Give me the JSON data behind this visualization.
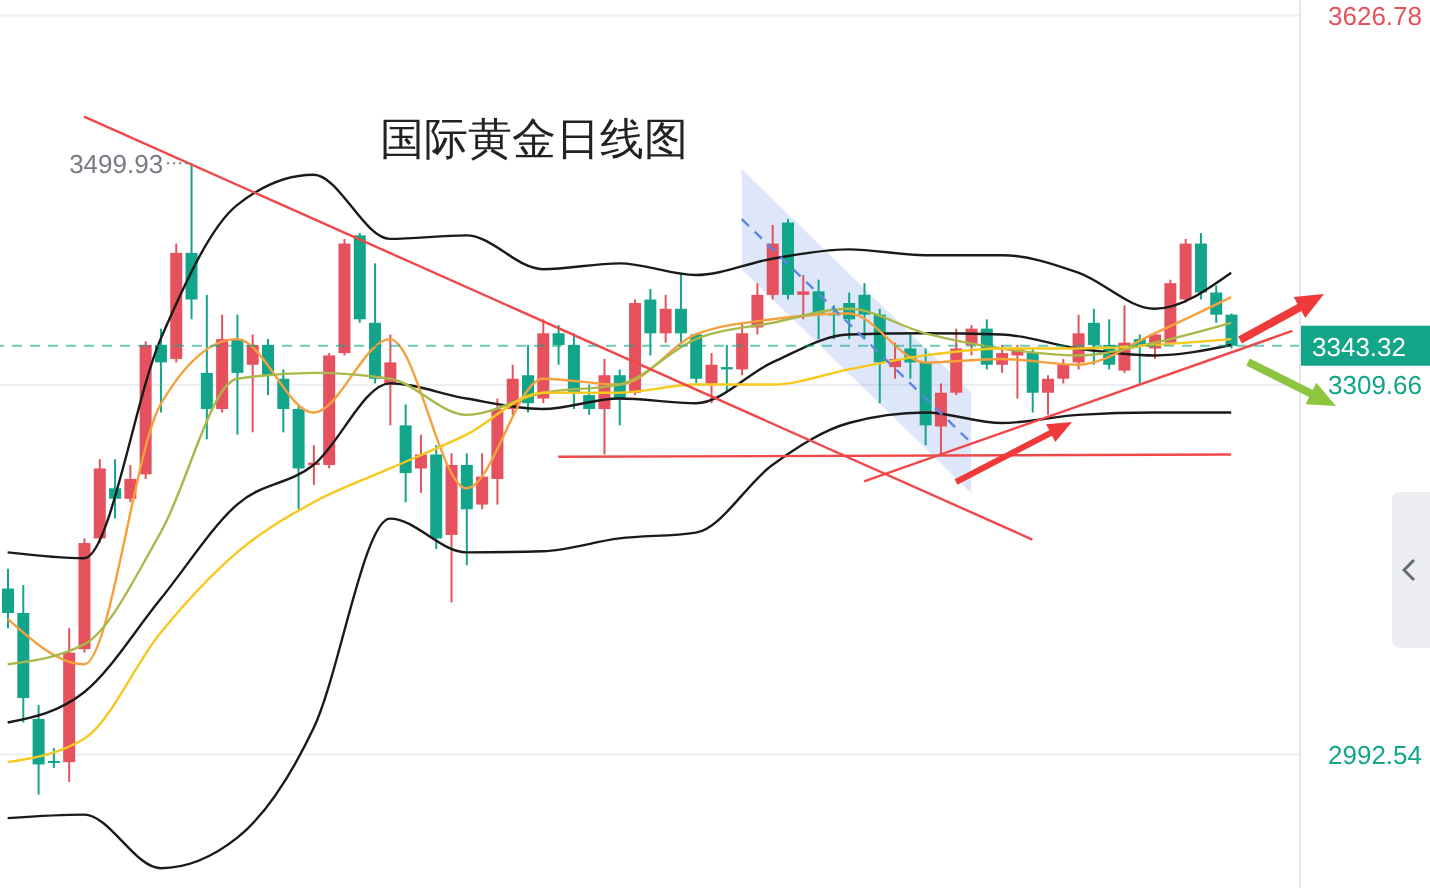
{
  "chart_data": {
    "type": "candlestick",
    "title": "国际黄金日线图",
    "categories": [
      null,
      null,
      null,
      null,
      null,
      null,
      null,
      null,
      null,
      null,
      null,
      null,
      null,
      null,
      null,
      null,
      null,
      null,
      null,
      null,
      null,
      null,
      null,
      null,
      null,
      null,
      null,
      null,
      null,
      null,
      null,
      null,
      null,
      null,
      null,
      null,
      null,
      null,
      null,
      null,
      null,
      null,
      null,
      null,
      null,
      null,
      null,
      null,
      null,
      null,
      null,
      null,
      null,
      null,
      null,
      null,
      null,
      null,
      null,
      null,
      null,
      null,
      null,
      null,
      null,
      null,
      null,
      null,
      null,
      null,
      null,
      null,
      null,
      null,
      null,
      null,
      null,
      null,
      null,
      null,
      null,
      null,
      null,
      null,
      null
    ],
    "ohlc": [
      [
        3135,
        3152,
        3101,
        3114
      ],
      [
        3114,
        3138,
        3020,
        3041
      ],
      [
        3023,
        3035,
        2958,
        2984
      ],
      [
        2987,
        2998,
        2981,
        2986
      ],
      [
        2986,
        3101,
        2969,
        3080
      ],
      [
        3083,
        3178,
        3080,
        3174
      ],
      [
        3178,
        3246,
        3174,
        3238
      ],
      [
        3221,
        3246,
        3195,
        3212
      ],
      [
        3212,
        3241,
        3209,
        3229
      ],
      [
        3233,
        3347,
        3229,
        3344
      ],
      [
        3344,
        3358,
        3286,
        3329
      ],
      [
        3332,
        3431,
        3329,
        3423
      ],
      [
        3423,
        3499.93,
        3366,
        3383
      ],
      [
        3320,
        3387,
        3263,
        3289
      ],
      [
        3289,
        3370,
        3286,
        3349
      ],
      [
        3349,
        3370,
        3267,
        3320
      ],
      [
        3327,
        3353,
        3269,
        3344
      ],
      [
        3344,
        3349,
        3301,
        3318
      ],
      [
        3315,
        3323,
        3269,
        3289
      ],
      [
        3289,
        3293,
        3203,
        3238
      ],
      [
        3241,
        3258,
        3224,
        3243
      ],
      [
        3241,
        3337,
        3238,
        3335
      ],
      [
        3337,
        3435,
        3335,
        3431
      ],
      [
        3438,
        3440,
        3363,
        3366
      ],
      [
        3363,
        3414,
        3311,
        3315
      ],
      [
        3310,
        3353,
        3275,
        3329
      ],
      [
        3275,
        3293,
        3209,
        3234
      ],
      [
        3238,
        3267,
        3217,
        3250
      ],
      [
        3250,
        3258,
        3169,
        3178
      ],
      [
        3181,
        3251,
        3123,
        3241
      ],
      [
        3241,
        3251,
        3155,
        3203
      ],
      [
        3207,
        3251,
        3203,
        3231
      ],
      [
        3229,
        3298,
        3207,
        3289
      ],
      [
        3289,
        3327,
        3284,
        3315
      ],
      [
        3318,
        3344,
        3286,
        3294
      ],
      [
        3298,
        3366,
        3294,
        3354
      ],
      [
        3354,
        3361,
        3327,
        3344
      ],
      [
        3344,
        3354,
        3289,
        3303
      ],
      [
        3301,
        3310,
        3284,
        3289
      ],
      [
        3289,
        3332,
        3250,
        3318
      ],
      [
        3318,
        3323,
        3275,
        3298
      ],
      [
        3303,
        3383,
        3301,
        3380
      ],
      [
        3383,
        3392,
        3335,
        3354
      ],
      [
        3354,
        3387,
        3346,
        3375
      ],
      [
        3375,
        3404,
        3346,
        3354
      ],
      [
        3353,
        3354,
        3311,
        3315
      ],
      [
        3311,
        3337,
        3294,
        3327
      ],
      [
        3325,
        3344,
        3303,
        3323
      ],
      [
        3323,
        3363,
        3318,
        3354
      ],
      [
        3359,
        3397,
        3353,
        3387
      ],
      [
        3387,
        3447,
        3383,
        3431
      ],
      [
        3449,
        3452,
        3383,
        3387
      ],
      [
        3387,
        3404,
        3366,
        3390
      ],
      [
        3390,
        3400,
        3349,
        3370
      ],
      [
        3371,
        3378,
        3349,
        3370
      ],
      [
        3380,
        3389,
        3349,
        3366
      ],
      [
        3387,
        3397,
        3349,
        3370
      ],
      [
        3370,
        3375,
        3294,
        3329
      ],
      [
        3325,
        3346,
        3315,
        3332
      ],
      [
        3341,
        3353,
        3315,
        3329
      ],
      [
        3329,
        3341,
        3258,
        3275
      ],
      [
        3274,
        3311,
        3250,
        3303
      ],
      [
        3303,
        3358,
        3301,
        3341
      ],
      [
        3344,
        3361,
        3335,
        3358
      ],
      [
        3358,
        3366,
        3323,
        3327
      ],
      [
        3327,
        3344,
        3320,
        3337
      ],
      [
        3335,
        3344,
        3298,
        3341
      ],
      [
        3337,
        3341,
        3286,
        3303
      ],
      [
        3303,
        3318,
        3284,
        3315
      ],
      [
        3315,
        3332,
        3311,
        3327
      ],
      [
        3329,
        3370,
        3323,
        3354
      ],
      [
        3363,
        3375,
        3327,
        3344
      ],
      [
        3344,
        3366,
        3323,
        3327
      ],
      [
        3322,
        3378,
        3320,
        3346
      ],
      [
        3349,
        3353,
        3311,
        3344
      ],
      [
        3341,
        3354,
        3332,
        3353
      ],
      [
        3346,
        3400,
        3344,
        3397
      ],
      [
        3383,
        3435,
        3380,
        3431
      ],
      [
        3431,
        3440,
        3383,
        3389
      ],
      [
        3389,
        3395,
        3363,
        3370
      ],
      [
        3370,
        3371,
        3341,
        3343.32
      ],
      null,
      null,
      null,
      null
    ],
    "colors": [
      "#12a58a",
      "#12a58a",
      "#12a58a",
      "#12a58a",
      "#e5525e",
      "#e5525e",
      "#e5525e",
      "#12a58a",
      "#e5525e",
      "#e5525e",
      "#12a58a",
      "#e5525e",
      "#12a58a",
      "#12a58a",
      "#e5525e",
      "#12a58a",
      "#e5525e",
      "#12a58a",
      "#12a58a",
      "#12a58a",
      "#e5525e",
      "#e5525e",
      "#e5525e",
      "#12a58a",
      "#12a58a",
      "#e5525e",
      "#12a58a",
      "#e5525e",
      "#12a58a",
      "#e5525e",
      "#12a58a",
      "#e5525e",
      "#e5525e",
      "#e5525e",
      "#12a58a",
      "#e5525e",
      "#12a58a",
      "#12a58a",
      "#12a58a",
      "#e5525e",
      "#12a58a",
      "#e5525e",
      "#12a58a",
      "#e5525e",
      "#12a58a",
      "#12a58a",
      "#e5525e",
      "#12a58a",
      "#e5525e",
      "#e5525e",
      "#e5525e",
      "#12a58a",
      "#e5525e",
      "#12a58a",
      "#12a58a",
      "#12a58a",
      "#12a58a",
      "#12a58a",
      "#e5525e",
      "#12a58a",
      "#12a58a",
      "#e5525e",
      "#e5525e",
      "#e5525e",
      "#12a58a",
      "#e5525e",
      "#e5525e",
      "#12a58a",
      "#e5525e",
      "#e5525e",
      "#e5525e",
      "#12a58a",
      "#12a58a",
      "#e5525e",
      "#12a58a",
      "#e5525e",
      "#e5525e",
      "#e5525e",
      "#12a58a",
      "#12a58a",
      "#12a58a",
      null,
      null,
      null,
      null
    ],
    "series": [
      {
        "type": "line",
        "color": "#1a1a1a",
        "values": [
          3166,
          null,
          null,
          null,
          null,
          3161,
          null,
          null,
          null,
          null,
          3349,
          null,
          null,
          null,
          null,
          3464,
          null,
          null,
          null,
          null,
          3490,
          null,
          null,
          null,
          null,
          3435,
          null,
          null,
          null,
          null,
          3438,
          null,
          null,
          null,
          null,
          3409,
          null,
          null,
          null,
          null,
          3414,
          null,
          null,
          null,
          null,
          3404,
          null,
          null,
          null,
          null,
          3418,
          null,
          null,
          null,
          null,
          3426,
          null,
          null,
          null,
          null,
          3421,
          null,
          null,
          null,
          null,
          3421,
          null,
          null,
          null,
          null,
          3406,
          null,
          null,
          null,
          null,
          3375,
          null,
          null,
          null,
          null,
          3406,
          null,
          null,
          null,
          null
        ]
      },
      {
        "type": "line",
        "color": "#1a1a1a",
        "values": [
          3020,
          null,
          null,
          null,
          null,
          3046,
          null,
          null,
          null,
          null,
          3126,
          null,
          null,
          null,
          null,
          3207,
          null,
          null,
          null,
          null,
          3241,
          null,
          null,
          null,
          null,
          3311,
          null,
          null,
          null,
          null,
          3298,
          null,
          null,
          null,
          null,
          3289,
          null,
          null,
          null,
          null,
          3298,
          null,
          null,
          null,
          null,
          3294,
          null,
          null,
          null,
          null,
          3329,
          null,
          null,
          null,
          null,
          3353,
          null,
          null,
          null,
          null,
          3354,
          null,
          null,
          null,
          null,
          3353,
          null,
          null,
          null,
          null,
          3341,
          null,
          null,
          null,
          null,
          3335,
          null,
          null,
          null,
          null,
          3344,
          null,
          null,
          null,
          null
        ]
      },
      {
        "type": "line",
        "color": "#1a1a1a",
        "values": [
          2938,
          null,
          null,
          null,
          null,
          2941,
          null,
          null,
          null,
          null,
          2895,
          null,
          null,
          null,
          null,
          2921,
          null,
          null,
          null,
          null,
          3015,
          null,
          null,
          null,
          null,
          3195,
          null,
          null,
          null,
          null,
          3166,
          null,
          null,
          null,
          null,
          3167,
          null,
          null,
          null,
          null,
          3178,
          null,
          null,
          null,
          null,
          3183,
          null,
          null,
          null,
          null,
          3241,
          null,
          null,
          null,
          null,
          3277,
          null,
          null,
          null,
          null,
          3286,
          null,
          null,
          null,
          null,
          3277,
          null,
          null,
          null,
          null,
          3284,
          null,
          null,
          null,
          null,
          3286,
          null,
          null,
          null,
          null,
          3286,
          null,
          null,
          null,
          null
        ]
      },
      {
        "type": "line",
        "color": "#f5a03c",
        "values": [
          3109,
          null,
          null,
          null,
          null,
          3070,
          null,
          null,
          null,
          null,
          3293,
          null,
          null,
          null,
          null,
          3349,
          null,
          null,
          null,
          null,
          3286,
          null,
          null,
          null,
          null,
          3349,
          null,
          null,
          null,
          null,
          3221,
          null,
          null,
          null,
          null,
          3315,
          null,
          null,
          null,
          null,
          3310,
          null,
          null,
          null,
          null,
          3353,
          null,
          null,
          null,
          null,
          3366,
          null,
          null,
          null,
          null,
          3371,
          null,
          null,
          null,
          null,
          3329,
          null,
          null,
          null,
          null,
          3332,
          null,
          null,
          null,
          null,
          3327,
          null,
          null,
          null,
          null,
          3354,
          null,
          null,
          null,
          null,
          3385,
          null,
          null,
          null,
          null
        ]
      },
      {
        "type": "line",
        "color": "#a8b84a",
        "values": [
          3070,
          null,
          null,
          null,
          null,
          3087,
          null,
          null,
          null,
          null,
          3183,
          null,
          null,
          null,
          null,
          3315,
          null,
          null,
          null,
          null,
          3320,
          null,
          null,
          null,
          null,
          3315,
          null,
          null,
          null,
          null,
          3284,
          null,
          null,
          null,
          null,
          3303,
          null,
          null,
          null,
          null,
          3310,
          null,
          null,
          null,
          null,
          3349,
          null,
          null,
          null,
          null,
          3363,
          null,
          null,
          null,
          null,
          3375,
          null,
          null,
          null,
          null,
          3354,
          null,
          null,
          null,
          null,
          3341,
          null,
          null,
          null,
          null,
          3335,
          null,
          null,
          null,
          null,
          3346,
          null,
          null,
          null,
          null,
          3363,
          null,
          null,
          null,
          null
        ]
      },
      {
        "type": "line",
        "color": "#f7c81e",
        "values": [
          2986,
          null,
          null,
          null,
          null,
          3006,
          null,
          null,
          null,
          null,
          3097,
          null,
          null,
          null,
          null,
          3166,
          null,
          null,
          null,
          null,
          3209,
          null,
          null,
          null,
          null,
          3238,
          null,
          null,
          null,
          null,
          3267,
          null,
          null,
          null,
          null,
          3303,
          null,
          null,
          null,
          null,
          3303,
          null,
          null,
          null,
          null,
          3310,
          null,
          null,
          null,
          null,
          3310,
          null,
          null,
          null,
          null,
          3323,
          null,
          null,
          null,
          null,
          3335,
          null,
          null,
          null,
          null,
          3341,
          null,
          null,
          null,
          null,
          3341,
          null,
          null,
          null,
          null,
          3344,
          null,
          null,
          null,
          null,
          3349,
          null,
          null,
          null,
          null
        ]
      },
      {
        "type": "line",
        "color": "#f04848",
        "values": [
          null,
          null,
          null,
          null,
          null,
          3540,
          null,
          null,
          null,
          null,
          null,
          null,
          null,
          null,
          null,
          null,
          null,
          null,
          null,
          null,
          null,
          null,
          null,
          null,
          null,
          null,
          null,
          null,
          null,
          null,
          null,
          null,
          null,
          null,
          null,
          null,
          null,
          null,
          null,
          null,
          null,
          null,
          null,
          null,
          null,
          null,
          null,
          null,
          null,
          null,
          null,
          null,
          null,
          null,
          null,
          null,
          null,
          null,
          null,
          null,
          null,
          null,
          null,
          null,
          null,
          null,
          null,
          3177,
          null,
          null,
          null,
          null,
          null,
          null,
          null,
          null,
          null,
          null,
          null,
          null,
          null,
          null,
          null,
          null,
          null
        ]
      },
      {
        "type": "line",
        "color": "#f04848",
        "values": [
          null,
          null,
          null,
          null,
          null,
          null,
          null,
          null,
          null,
          null,
          null,
          null,
          null,
          null,
          null,
          null,
          null,
          null,
          null,
          null,
          null,
          null,
          null,
          null,
          null,
          null,
          null,
          null,
          null,
          null,
          null,
          null,
          null,
          null,
          null,
          null,
          3248,
          null,
          null,
          null,
          null,
          null,
          null,
          null,
          null,
          null,
          null,
          null,
          null,
          null,
          null,
          null,
          null,
          null,
          null,
          null,
          null,
          null,
          null,
          null,
          null,
          null,
          null,
          null,
          null,
          null,
          null,
          null,
          null,
          null,
          null,
          null,
          null,
          null,
          null,
          null,
          null,
          null,
          null,
          null,
          3250,
          null,
          null,
          null,
          null
        ]
      },
      {
        "type": "line",
        "color": "#f04848",
        "values": [
          null,
          null,
          null,
          null,
          null,
          null,
          null,
          null,
          null,
          null,
          null,
          null,
          null,
          null,
          null,
          null,
          null,
          null,
          null,
          null,
          null,
          null,
          null,
          null,
          null,
          null,
          null,
          null,
          null,
          null,
          null,
          null,
          null,
          null,
          null,
          null,
          null,
          null,
          null,
          null,
          null,
          null,
          null,
          null,
          null,
          null,
          null,
          null,
          null,
          null,
          null,
          null,
          null,
          null,
          null,
          null,
          3227,
          null,
          null,
          null,
          null,
          null,
          null,
          null,
          null,
          null,
          null,
          null,
          null,
          null,
          null,
          null,
          null,
          null,
          null,
          null,
          null,
          null,
          null,
          null,
          null,
          null,
          null,
          null,
          3356
        ]
      },
      {
        "type": "line",
        "color": "#5b86e6",
        "line_style": "dashed",
        "values": [
          null,
          null,
          null,
          null,
          null,
          null,
          null,
          null,
          null,
          null,
          null,
          null,
          null,
          null,
          null,
          null,
          null,
          null,
          null,
          null,
          null,
          null,
          null,
          null,
          null,
          null,
          null,
          null,
          null,
          null,
          null,
          null,
          null,
          null,
          null,
          null,
          null,
          null,
          null,
          null,
          null,
          null,
          null,
          null,
          null,
          null,
          null,
          null,
          3452,
          null,
          null,
          null,
          null,
          null,
          null,
          null,
          null,
          null,
          null,
          null,
          null,
          null,
          null,
          3260,
          null,
          null,
          null,
          null,
          null,
          null,
          null,
          null,
          null,
          null,
          null,
          null,
          null,
          null,
          null,
          null,
          null,
          null,
          null,
          null,
          null
        ],
        "lower": [
          null,
          null,
          null,
          null,
          null,
          null,
          null,
          null,
          null,
          null,
          null,
          null,
          null,
          null,
          null,
          null,
          null,
          null,
          null,
          null,
          null,
          null,
          null,
          null,
          null,
          null,
          null,
          null,
          null,
          null,
          null,
          null,
          null,
          null,
          null,
          null,
          null,
          null,
          null,
          null,
          null,
          null,
          null,
          null,
          null,
          null,
          null,
          null,
          3409,
          null,
          null,
          null,
          null,
          null,
          null,
          null,
          null,
          null,
          null,
          null,
          null,
          null,
          null,
          3217,
          null,
          null,
          null,
          null,
          null,
          null,
          null,
          null,
          null,
          null,
          null,
          null,
          null,
          null,
          null,
          null,
          null,
          null,
          null,
          null,
          null
        ],
        "upper": [
          null,
          null,
          null,
          null,
          null,
          null,
          null,
          null,
          null,
          null,
          null,
          null,
          null,
          null,
          null,
          null,
          null,
          null,
          null,
          null,
          null,
          null,
          null,
          null,
          null,
          null,
          null,
          null,
          null,
          null,
          null,
          null,
          null,
          null,
          null,
          null,
          null,
          null,
          null,
          null,
          null,
          null,
          null,
          null,
          null,
          null,
          null,
          null,
          3495,
          null,
          null,
          null,
          null,
          null,
          null,
          null,
          null,
          null,
          null,
          null,
          null,
          null,
          null,
          3303,
          null,
          null,
          null,
          null,
          null,
          null,
          null,
          null,
          null,
          null,
          null,
          null,
          null,
          null,
          null,
          null,
          null,
          null,
          null,
          null,
          null
        ]
      }
    ],
    "ylim": [
      2878,
      3640
    ],
    "yticks": [
      2992.54,
      3309.66,
      3626.78
    ],
    "ref_lines": [
      {
        "axis": "y",
        "value": 3343.32,
        "label": "3343.32",
        "color": "#12a58a",
        "line_style": "dashed"
      }
    ],
    "annotations": [
      "3499.93"
    ],
    "grid": "y",
    "tick_labels": "y"
  }
}
